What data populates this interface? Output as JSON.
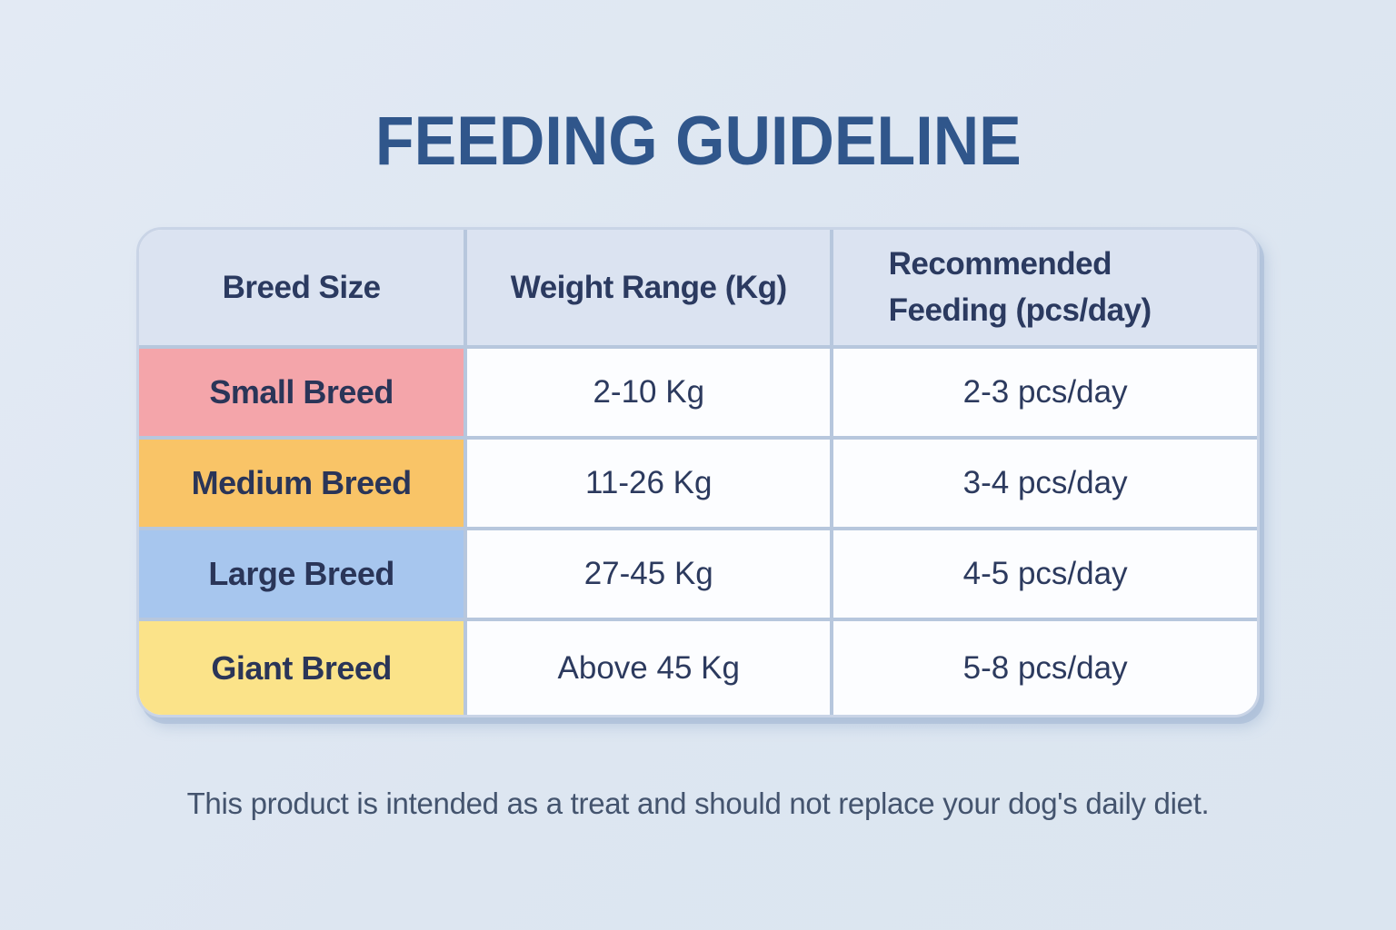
{
  "title": "FEEDING GUIDELINE",
  "table": {
    "headers": [
      "Breed Size",
      "Weight Range (Kg)",
      "Recommended Feeding (pcs/day)"
    ],
    "rows": [
      {
        "label": "Small Breed",
        "weight": "2-10 Kg",
        "feeding": "2-3 pcs/day",
        "color": "#f4a5aa"
      },
      {
        "label": "Medium Breed",
        "weight": "11-26 Kg",
        "feeding": "3-4 pcs/day",
        "color": "#f9c467"
      },
      {
        "label": "Large Breed",
        "weight": "27-45 Kg",
        "feeding": "4-5 pcs/day",
        "color": "#a7c6ee"
      },
      {
        "label": "Giant Breed",
        "weight": "Above 45 Kg",
        "feeding": "5-8 pcs/day",
        "color": "#fbe389"
      }
    ]
  },
  "footer_note": "This product is intended as a treat and should not replace your dog's daily diet.",
  "colors": {
    "page_background": "#e0e8f2",
    "header_background": "#dbe3f1",
    "grid_border": "#b7c7dd",
    "title_text": "#30568b",
    "cell_text": "#2a3558",
    "footer_text": "#44546e",
    "row_small": "#f4a5aa",
    "row_medium": "#f9c467",
    "row_large": "#a7c6ee",
    "row_giant": "#fbe389"
  },
  "chart_data": {
    "type": "table",
    "title": "FEEDING GUIDELINE",
    "columns": [
      "Breed Size",
      "Weight Range (Kg)",
      "Recommended Feeding (pcs/day)"
    ],
    "rows": [
      [
        "Small Breed",
        "2-10 Kg",
        "2-3 pcs/day"
      ],
      [
        "Medium Breed",
        "11-26 Kg",
        "3-4 pcs/day"
      ],
      [
        "Large Breed",
        "27-45 Kg",
        "4-5 pcs/day"
      ],
      [
        "Giant Breed",
        "Above 45 Kg",
        "5-8 pcs/day"
      ]
    ],
    "row_colors": [
      "#f4a5aa",
      "#f9c467",
      "#a7c6ee",
      "#fbe389"
    ],
    "note": "This product is intended as a treat and should not replace your dog's daily diet.",
    "legend_position": "none",
    "grid": true
  }
}
